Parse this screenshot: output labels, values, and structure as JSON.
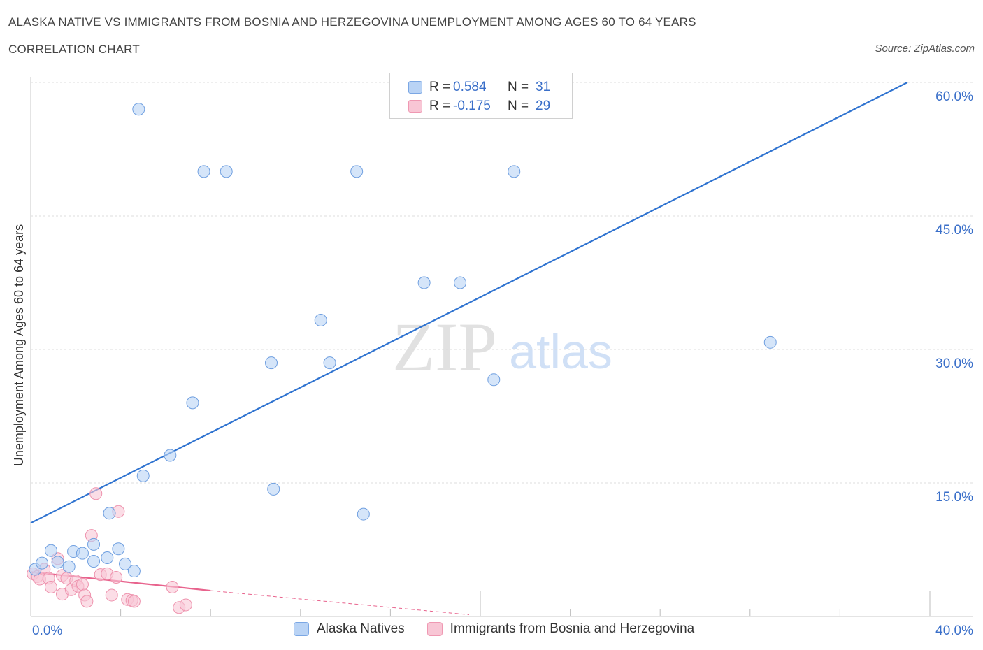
{
  "header": {
    "title": "ALASKA NATIVE VS IMMIGRANTS FROM BOSNIA AND HERZEGOVINA UNEMPLOYMENT AMONG AGES 60 TO 64 YEARS",
    "subtitle": "CORRELATION CHART",
    "source": "Source: ZipAtlas.com"
  },
  "watermark": {
    "zip": "ZIP",
    "atlas": "atlas"
  },
  "legend": {
    "rows": [
      {
        "r_label": "R =",
        "r_value": "0.584",
        "n_label": "N =",
        "n_value": "31",
        "color": "#b9d3f5",
        "border": "#7ba7e4"
      },
      {
        "r_label": "R =",
        "r_value": "-0.175",
        "n_label": "N =",
        "n_value": "29",
        "color": "#f8c6d5",
        "border": "#ef98b2"
      }
    ]
  },
  "bottom_legend": {
    "items": [
      {
        "label": "Alaska Natives",
        "color": "#b9d3f5",
        "border": "#7ba7e4"
      },
      {
        "label": "Immigrants from Bosnia and Herzegovina",
        "color": "#f8c6d5",
        "border": "#ef98b2"
      }
    ]
  },
  "chart_data": {
    "type": "scatter",
    "title": "ALASKA NATIVE VS IMMIGRANTS FROM BOSNIA AND HERZEGOVINA UNEMPLOYMENT AMONG AGES 60 TO 64 YEARS",
    "xlabel": "",
    "ylabel": "Unemployment Among Ages 60 to 64 years",
    "xlim": [
      0,
      40
    ],
    "ylim": [
      0,
      60
    ],
    "x_tick_labels": [
      {
        "value": 0,
        "label": "0.0%"
      },
      {
        "value": 40,
        "label": "40.0%"
      }
    ],
    "y_tick_labels": [
      {
        "value": 15,
        "label": "15.0%"
      },
      {
        "value": 30,
        "label": "30.0%"
      },
      {
        "value": 45,
        "label": "45.0%"
      },
      {
        "value": 60,
        "label": "60.0%"
      }
    ],
    "y_gridlines": [
      15,
      30,
      45,
      60
    ],
    "x_minor_ticks": [
      4,
      8,
      12,
      16,
      20,
      24,
      28,
      32,
      36,
      40
    ],
    "series": [
      {
        "name": "Alaska Natives",
        "color": "#b9d3f5",
        "stroke": "#6f9fe0",
        "line_color": "#2f73d0",
        "trend": {
          "x": [
            0,
            39
          ],
          "y": [
            10.5,
            60
          ]
        },
        "points": [
          [
            0.2,
            5.3
          ],
          [
            0.5,
            6.0
          ],
          [
            0.9,
            7.4
          ],
          [
            1.2,
            6.1
          ],
          [
            1.7,
            5.6
          ],
          [
            1.9,
            7.3
          ],
          [
            2.3,
            7.1
          ],
          [
            2.8,
            8.1
          ],
          [
            2.8,
            6.2
          ],
          [
            3.4,
            6.6
          ],
          [
            3.5,
            11.6
          ],
          [
            3.9,
            7.6
          ],
          [
            4.2,
            5.9
          ],
          [
            4.6,
            5.1
          ],
          [
            4.8,
            57.0
          ],
          [
            5.0,
            15.8
          ],
          [
            6.2,
            18.1
          ],
          [
            7.2,
            24.0
          ],
          [
            7.7,
            50.0
          ],
          [
            8.7,
            50.0
          ],
          [
            10.7,
            28.5
          ],
          [
            10.8,
            14.3
          ],
          [
            12.9,
            33.3
          ],
          [
            13.3,
            28.5
          ],
          [
            14.5,
            50.0
          ],
          [
            14.8,
            11.5
          ],
          [
            17.5,
            37.5
          ],
          [
            19.1,
            37.5
          ],
          [
            20.6,
            26.6
          ],
          [
            21.5,
            50.0
          ],
          [
            32.9,
            30.8
          ]
        ]
      },
      {
        "name": "Immigrants from Bosnia and Herzegovina",
        "color": "#f8c6d5",
        "stroke": "#ee92ad",
        "line_color": "#e8638d",
        "trend": {
          "x": [
            0,
            8
          ],
          "y": [
            5.0,
            2.9
          ]
        },
        "trend_dashed": {
          "x": [
            8,
            19.5
          ],
          "y": [
            2.9,
            0.2
          ]
        },
        "points": [
          [
            0.1,
            4.8
          ],
          [
            0.3,
            4.5
          ],
          [
            0.4,
            4.2
          ],
          [
            0.6,
            5.3
          ],
          [
            0.8,
            4.3
          ],
          [
            0.9,
            3.3
          ],
          [
            1.2,
            6.5
          ],
          [
            1.4,
            4.6
          ],
          [
            1.4,
            2.5
          ],
          [
            1.6,
            4.3
          ],
          [
            1.8,
            3.0
          ],
          [
            2.0,
            4.0
          ],
          [
            2.1,
            3.4
          ],
          [
            2.3,
            3.6
          ],
          [
            2.4,
            2.4
          ],
          [
            2.5,
            1.7
          ],
          [
            2.7,
            9.1
          ],
          [
            2.9,
            13.8
          ],
          [
            3.1,
            4.7
          ],
          [
            3.4,
            4.8
          ],
          [
            3.6,
            2.4
          ],
          [
            3.8,
            4.4
          ],
          [
            3.9,
            11.8
          ],
          [
            4.3,
            1.9
          ],
          [
            4.5,
            1.8
          ],
          [
            4.6,
            1.7
          ],
          [
            6.3,
            3.3
          ],
          [
            6.6,
            1.0
          ],
          [
            6.9,
            1.3
          ]
        ]
      }
    ]
  }
}
